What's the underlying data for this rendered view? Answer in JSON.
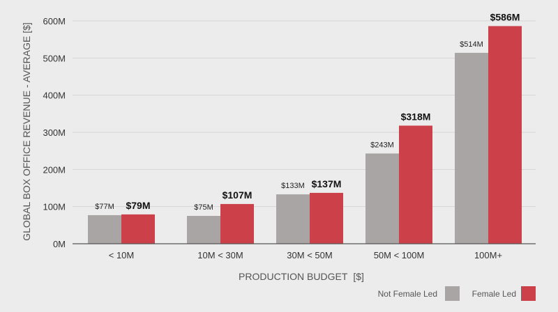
{
  "chart_data": {
    "type": "bar",
    "title": "",
    "xlabel": "PRODUCTION BUDGET",
    "xlabel_unit": "[$]",
    "ylabel": "GLOBAL BOX OFFICE REVENUE - AVERAGE [$]",
    "ylim": [
      0,
      600
    ],
    "yticks": [
      0,
      100,
      200,
      300,
      400,
      500,
      600
    ],
    "ytick_labels": [
      "0M",
      "100M",
      "200M",
      "300M",
      "400M",
      "500M",
      "600M"
    ],
    "grid": true,
    "legend_position": "bottom-right",
    "categories": [
      "< 10M",
      "10M < 30M",
      "30M < 50M",
      "50M < 100M",
      "100M+"
    ],
    "series": [
      {
        "name": "Not Female Led",
        "color": "#aaa5a5",
        "values": [
          77,
          75,
          133,
          243,
          514
        ],
        "labels": [
          "$77M",
          "$75M",
          "$133M",
          "$243M",
          "$514M"
        ]
      },
      {
        "name": "Female Led",
        "color": "#cc4049",
        "values": [
          79,
          107,
          137,
          318,
          586
        ],
        "labels": [
          "$79M",
          "$107M",
          "$137M",
          "$318M",
          "$586M"
        ]
      }
    ]
  }
}
